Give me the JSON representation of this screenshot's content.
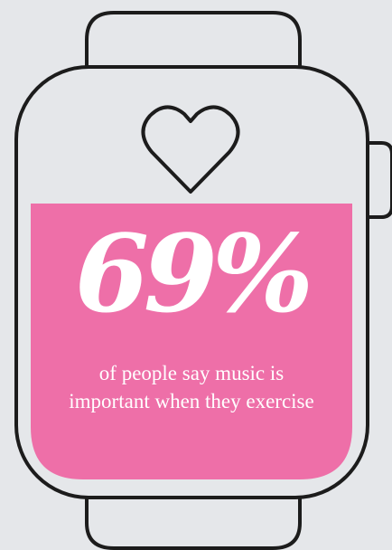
{
  "infographic": {
    "stat_value": "69%",
    "stat_caption": "of people say music is important when they exercise",
    "icon": "smartwatch-icon",
    "heart_icon": "heart-outline-icon",
    "colors": {
      "background": "#e5e7ea",
      "screen_accent": "#ee6fa8",
      "outline": "#1c1c1c",
      "text": "#ffffff"
    }
  }
}
